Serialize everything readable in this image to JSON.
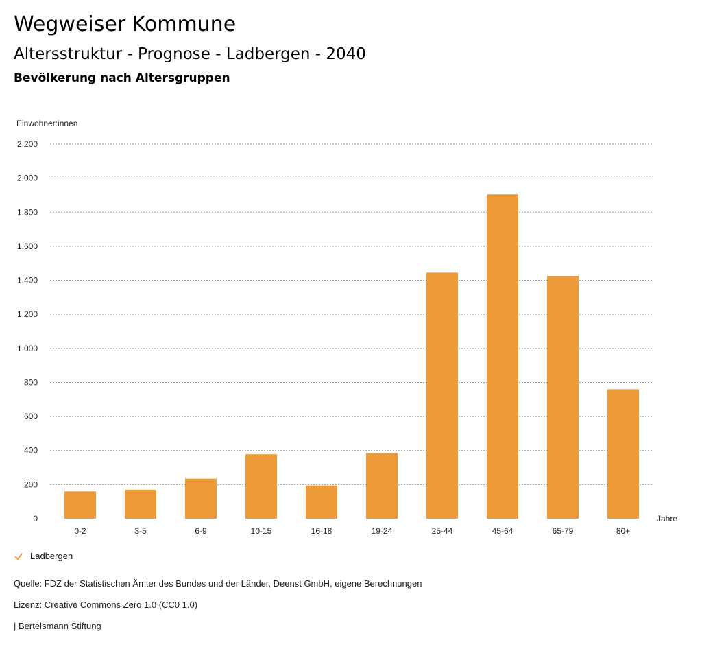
{
  "header": {
    "title": "Wegweiser Kommune",
    "subtitle": "Altersstruktur - Prognose - Ladbergen - 2040",
    "chart_title": "Bevölkerung nach Altersgruppen"
  },
  "legend": {
    "label": "Ladbergen",
    "icon": "checkmark-icon",
    "color": "#ED9A38"
  },
  "footer": {
    "source": "Quelle: FDZ der Statistischen Ämter des Bundes und der Länder, Deenst GmbH, eigene Berechnungen",
    "license": "Lizenz: Creative Commons Zero 1.0 (CC0 1.0)",
    "publisher": "| Bertelsmann Stiftung"
  },
  "chart_data": {
    "type": "bar",
    "ylabel": "Einwohner:innen",
    "xlabel": "Jahre",
    "categories": [
      "0-2",
      "3-5",
      "6-9",
      "10-15",
      "16-18",
      "19-24",
      "25-44",
      "45-64",
      "65-79",
      "80+"
    ],
    "series": [
      {
        "name": "Ladbergen",
        "values": [
          160,
          170,
          235,
          378,
          195,
          385,
          1445,
          1905,
          1425,
          760
        ],
        "color": "#ED9A38"
      }
    ],
    "ylim": [
      0,
      2200
    ],
    "yticks": [
      0,
      200,
      400,
      600,
      800,
      1000,
      1200,
      1400,
      1600,
      1800,
      2000,
      2200
    ],
    "ytick_labels": [
      "0",
      "200",
      "400",
      "600",
      "800",
      "1.000",
      "1.200",
      "1.400",
      "1.600",
      "1.800",
      "2.000",
      "2.200"
    ],
    "grid": true
  }
}
